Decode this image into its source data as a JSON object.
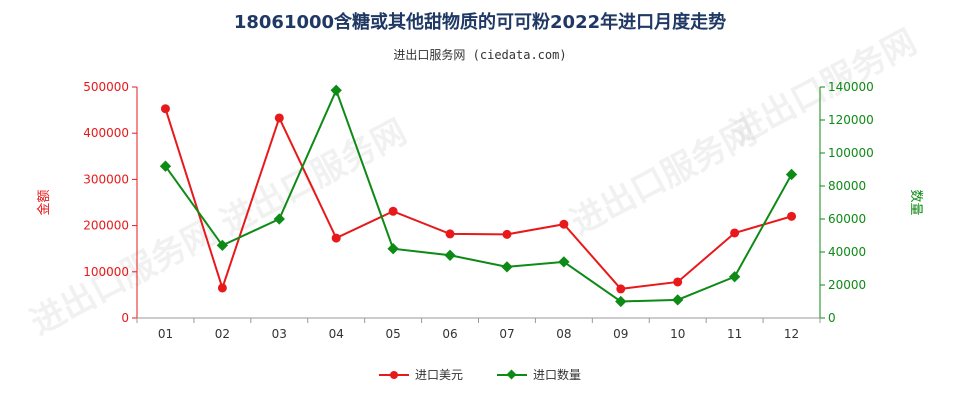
{
  "header": {
    "title": "18061000含糖或其他甜物质的可可粉2022年进口月度走势",
    "subtitle": "进出口服务网 (ciedata.com)"
  },
  "watermark": "进出口服务网",
  "legend": {
    "left_label": "进口美元",
    "right_label": "进口数量"
  },
  "chart_data": {
    "type": "line",
    "categories": [
      "01",
      "02",
      "03",
      "04",
      "05",
      "06",
      "07",
      "08",
      "09",
      "10",
      "11",
      "12"
    ],
    "series": [
      {
        "name": "进口美元",
        "axis": "left",
        "color": "#e8191b",
        "marker": "circle",
        "values": [
          453000,
          65000,
          433000,
          173000,
          231000,
          182000,
          181000,
          203000,
          63000,
          78000,
          184000,
          220000
        ]
      },
      {
        "name": "进口数量",
        "axis": "right",
        "color": "#0e8a16",
        "marker": "diamond",
        "values": [
          92000,
          44000,
          60000,
          138000,
          42000,
          38000,
          31000,
          34000,
          10000,
          11000,
          25000,
          87000
        ]
      }
    ],
    "ylabel": "金额",
    "y2label": "数量",
    "ylim": [
      0,
      500000
    ],
    "y2lim": [
      0,
      140000
    ],
    "yticks": [
      0,
      100000,
      200000,
      300000,
      400000,
      500000
    ],
    "y2ticks": [
      0,
      20000,
      40000,
      60000,
      80000,
      100000,
      120000,
      140000
    ],
    "grid": false,
    "legend_position": "bottom"
  }
}
